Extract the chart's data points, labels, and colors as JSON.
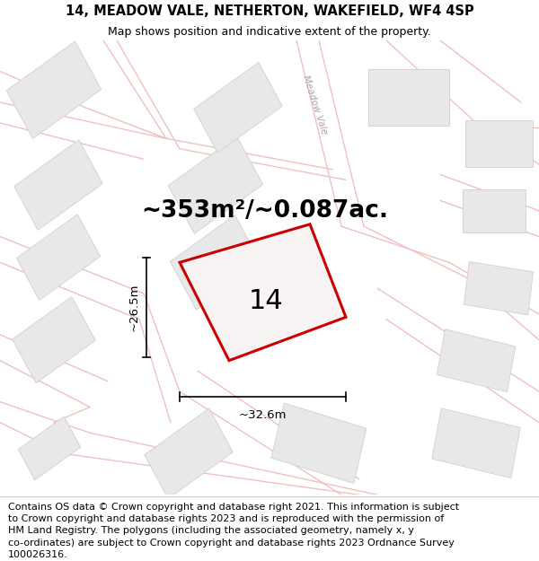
{
  "title_line1": "14, MEADOW VALE, NETHERTON, WAKEFIELD, WF4 4SP",
  "title_line2": "Map shows position and indicative extent of the property.",
  "area_text": "~353m²/~0.087ac.",
  "label_number": "14",
  "dim_width": "~32.6m",
  "dim_height": "~26.5m",
  "street_label": "Meadow Vale",
  "footer_text": "Contains OS data © Crown copyright and database right 2021. This information is subject to Crown copyright and database rights 2023 and is reproduced with the permission of HM Land Registry. The polygons (including the associated geometry, namely x, y co-ordinates) are subject to Crown copyright and database rights 2023 Ordnance Survey 100026316.",
  "map_bg": "#fdf8f8",
  "building_fill": "#e8e8e8",
  "building_edge": "#d0d0d0",
  "plot_fill": "#f8f4f4",
  "plot_edge": "#cc0000",
  "line_color": "#f0c0c0",
  "title_fontsize": 10.5,
  "subtitle_fontsize": 9,
  "area_fontsize": 19,
  "label_fontsize": 22,
  "dim_fontsize": 9.5,
  "footer_fontsize": 8,
  "plot_lw": 2.2,
  "road_lw": 1.0
}
